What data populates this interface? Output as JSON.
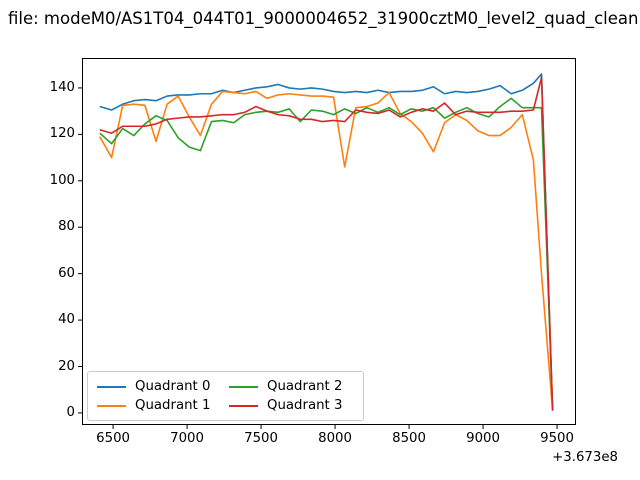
{
  "chart_data": {
    "type": "line",
    "title": "file: modeM0/AS1T04_044T01_9000004652_31900cztM0_level2_quad_clean",
    "xlabel": "",
    "ylabel": "",
    "grid": false,
    "legend": {
      "position": "lower left",
      "columns": 2,
      "entries": [
        "Quadrant 0",
        "Quadrant 1",
        "Quadrant 2",
        "Quadrant 3"
      ]
    },
    "x_axis": {
      "ticks": [
        6500,
        7000,
        7500,
        8000,
        8500,
        9000,
        9500
      ],
      "offset_label": "+3.673e8",
      "lim": [
        6290,
        9628
      ]
    },
    "y_axis": {
      "ticks": [
        0,
        20,
        40,
        60,
        80,
        100,
        120,
        140
      ],
      "lim": [
        -5.2,
        152.9
      ]
    },
    "x": [
      6410,
      6490,
      6565,
      6640,
      6715,
      6790,
      6865,
      6940,
      7015,
      7090,
      7165,
      7240,
      7315,
      7390,
      7465,
      7540,
      7615,
      7690,
      7765,
      7840,
      7915,
      7990,
      8065,
      8140,
      8215,
      8290,
      8365,
      8440,
      8515,
      8590,
      8665,
      8740,
      8815,
      8890,
      8965,
      9040,
      9115,
      9190,
      9265,
      9340,
      9395,
      9470
    ],
    "series": [
      {
        "name": "Quadrant 0",
        "color": "#1f77b4",
        "values": [
          132,
          130.5,
          133,
          134.5,
          135,
          134.5,
          136.5,
          137,
          137,
          137.5,
          137.5,
          139,
          138,
          139,
          140,
          140.5,
          141.5,
          140,
          139.5,
          140,
          139.5,
          138.5,
          138,
          138.5,
          138,
          139,
          138,
          138.5,
          138.5,
          139,
          140.5,
          137.5,
          138.5,
          138,
          138.5,
          139.5,
          141,
          137.5,
          139,
          142,
          146,
          1
        ]
      },
      {
        "name": "Quadrant 1",
        "color": "#ff7f0e",
        "values": [
          119,
          110,
          132.5,
          133,
          132.5,
          117,
          133,
          136.5,
          127.5,
          119.5,
          133,
          138.5,
          138,
          137.5,
          138.5,
          135.5,
          137,
          137.5,
          137,
          136.5,
          136.5,
          136,
          106,
          131.5,
          132,
          133.5,
          138,
          129,
          125.5,
          120.5,
          112.5,
          125,
          128.5,
          126,
          121.5,
          119.5,
          119.5,
          123,
          128.5,
          109,
          60,
          1
        ]
      },
      {
        "name": "Quadrant 2",
        "color": "#2ca02c",
        "values": [
          120.5,
          116,
          122.5,
          119.5,
          124.5,
          128,
          126,
          118.5,
          114.5,
          113,
          125.5,
          126,
          125,
          128.5,
          129.5,
          130,
          129.5,
          131,
          125.5,
          130.5,
          130,
          128.5,
          131,
          129,
          131.5,
          129.5,
          131.5,
          128.5,
          131,
          130,
          131.5,
          127,
          129.5,
          131.5,
          129,
          127.5,
          132,
          135.5,
          131.5,
          131.5,
          131.5,
          1
        ]
      },
      {
        "name": "Quadrant 3",
        "color": "#d62728",
        "values": [
          122,
          120.5,
          123.5,
          123.5,
          123.5,
          124.5,
          126.5,
          127,
          127.5,
          127.5,
          128,
          128.5,
          128.5,
          129.5,
          132,
          130,
          128.5,
          128,
          126.5,
          126.5,
          125.5,
          126,
          125.5,
          130.5,
          129.5,
          129,
          130.5,
          127.5,
          129.5,
          131,
          130,
          133.5,
          128.5,
          130,
          129.5,
          129.5,
          129.5,
          130,
          130,
          130.5,
          144.5,
          1
        ]
      }
    ]
  }
}
